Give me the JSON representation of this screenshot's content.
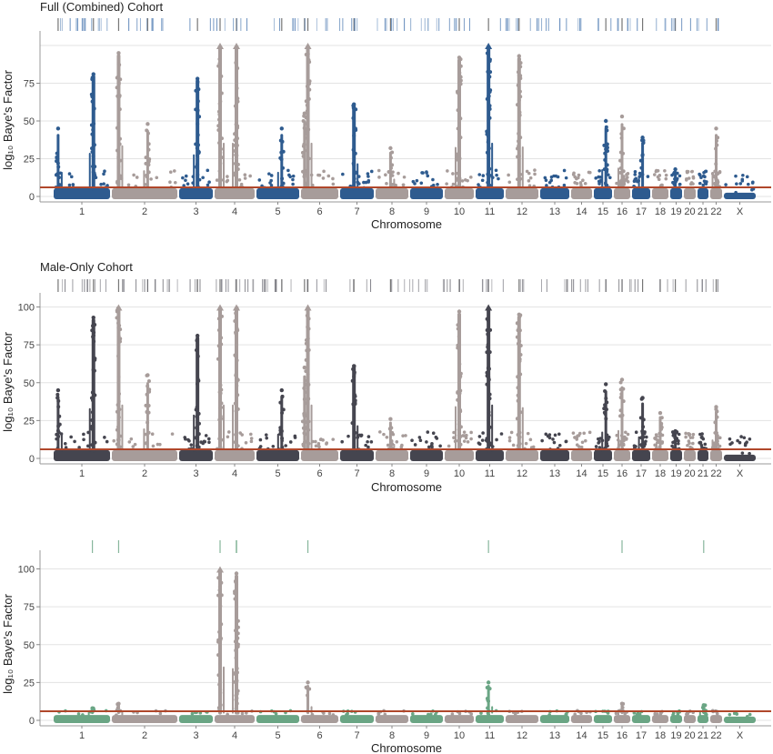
{
  "chart_data": [
    {
      "type": "scatter",
      "title": "Full (Combined) Cohort",
      "xlabel": "Chromosome",
      "ylabel": "log₁₀ Baye's Factor",
      "ylim": [
        0,
        100
      ],
      "yticks": [
        0,
        25,
        50,
        75
      ],
      "chromosomes": [
        "1",
        "2",
        "3",
        "4",
        "5",
        "6",
        "7",
        "8",
        "9",
        "10",
        "11",
        "12",
        "13",
        "14",
        "15",
        "16",
        "17",
        "18",
        "19",
        "20",
        "21",
        "22",
        "X"
      ],
      "threshold": 6,
      "colors": {
        "odd": "#2e5b8f",
        "even": "#a79c9a",
        "threshold": "#b0472b",
        "rug": "#4a78b0"
      },
      "peaks": [
        {
          "chr": "1",
          "value": 45,
          "pos": 0.05
        },
        {
          "chr": "1",
          "value": 81,
          "pos": 0.72
        },
        {
          "chr": "2",
          "value": 95,
          "pos": 0.08
        },
        {
          "chr": "2",
          "value": 48,
          "pos": 0.55
        },
        {
          "chr": "3",
          "value": 78,
          "pos": 0.55
        },
        {
          "chr": "4",
          "value": 100,
          "pos": 0.1,
          "capped": true
        },
        {
          "chr": "4",
          "value": 100,
          "pos": 0.55,
          "capped": true
        },
        {
          "chr": "5",
          "value": 45,
          "pos": 0.6
        },
        {
          "chr": "6",
          "value": 55,
          "pos": 0.05
        },
        {
          "chr": "6",
          "value": 100,
          "pos": 0.15,
          "capped": true
        },
        {
          "chr": "7",
          "value": 61,
          "pos": 0.4
        },
        {
          "chr": "8",
          "value": 32,
          "pos": 0.45
        },
        {
          "chr": "10",
          "value": 92,
          "pos": 0.5
        },
        {
          "chr": "11",
          "value": 100,
          "pos": 0.45,
          "capped": true
        },
        {
          "chr": "12",
          "value": 93,
          "pos": 0.4
        },
        {
          "chr": "15",
          "value": 50,
          "pos": 0.7
        },
        {
          "chr": "16",
          "value": 53,
          "pos": 0.5
        },
        {
          "chr": "17",
          "value": 39,
          "pos": 0.6
        },
        {
          "chr": "19",
          "value": 18,
          "pos": 0.4
        },
        {
          "chr": "22",
          "value": 45,
          "pos": 0.5
        }
      ]
    },
    {
      "type": "scatter",
      "title": "Male-Only Cohort",
      "xlabel": "Chromosome",
      "ylabel": "log₁₀ Baye's Factor",
      "ylim": [
        0,
        100
      ],
      "yticks": [
        0,
        25,
        50,
        75,
        100
      ],
      "chromosomes": [
        "1",
        "2",
        "3",
        "4",
        "5",
        "6",
        "7",
        "8",
        "9",
        "10",
        "11",
        "12",
        "13",
        "14",
        "15",
        "16",
        "17",
        "18",
        "19",
        "20",
        "21",
        "22",
        "X"
      ],
      "threshold": 6,
      "colors": {
        "odd": "#45454f",
        "even": "#a79c9a",
        "threshold": "#b0472b",
        "rug": "#6a6a72"
      },
      "peaks": [
        {
          "chr": "1",
          "value": 45,
          "pos": 0.05
        },
        {
          "chr": "1",
          "value": 93,
          "pos": 0.72
        },
        {
          "chr": "2",
          "value": 100,
          "pos": 0.08,
          "capped": true
        },
        {
          "chr": "2",
          "value": 55,
          "pos": 0.55
        },
        {
          "chr": "3",
          "value": 81,
          "pos": 0.55
        },
        {
          "chr": "4",
          "value": 100,
          "pos": 0.1,
          "capped": true
        },
        {
          "chr": "4",
          "value": 100,
          "pos": 0.55,
          "capped": true
        },
        {
          "chr": "5",
          "value": 45,
          "pos": 0.6
        },
        {
          "chr": "6",
          "value": 60,
          "pos": 0.05
        },
        {
          "chr": "6",
          "value": 100,
          "pos": 0.15,
          "capped": true
        },
        {
          "chr": "7",
          "value": 61,
          "pos": 0.4
        },
        {
          "chr": "8",
          "value": 26,
          "pos": 0.45
        },
        {
          "chr": "10",
          "value": 97,
          "pos": 0.5
        },
        {
          "chr": "11",
          "value": 100,
          "pos": 0.45,
          "capped": true
        },
        {
          "chr": "12",
          "value": 95,
          "pos": 0.4
        },
        {
          "chr": "15",
          "value": 49,
          "pos": 0.7
        },
        {
          "chr": "16",
          "value": 52,
          "pos": 0.5
        },
        {
          "chr": "17",
          "value": 40,
          "pos": 0.6
        },
        {
          "chr": "18",
          "value": 30,
          "pos": 0.5
        },
        {
          "chr": "19",
          "value": 18,
          "pos": 0.4
        },
        {
          "chr": "22",
          "value": 34,
          "pos": 0.5
        }
      ]
    },
    {
      "type": "scatter",
      "title": "",
      "xlabel": "Chromosome",
      "ylabel": "log₁₀ Baye's Factor",
      "ylim": [
        0,
        100
      ],
      "yticks": [
        0,
        25,
        50,
        75,
        100
      ],
      "chromosomes": [
        "1",
        "2",
        "3",
        "4",
        "5",
        "6",
        "7",
        "8",
        "9",
        "10",
        "11",
        "12",
        "13",
        "14",
        "15",
        "16",
        "17",
        "18",
        "19",
        "20",
        "21",
        "22",
        "X"
      ],
      "threshold": 6,
      "colors": {
        "odd": "#6aa584",
        "even": "#a79c9a",
        "threshold": "#b0472b",
        "rug": "#6aa584"
      },
      "peaks": [
        {
          "chr": "1",
          "value": 8,
          "pos": 0.7
        },
        {
          "chr": "2",
          "value": 11,
          "pos": 0.08
        },
        {
          "chr": "4",
          "value": 100,
          "pos": 0.1,
          "capped": true
        },
        {
          "chr": "4",
          "value": 97,
          "pos": 0.55
        },
        {
          "chr": "4",
          "value": 53,
          "pos": 0.55
        },
        {
          "chr": "6",
          "value": 25,
          "pos": 0.15
        },
        {
          "chr": "11",
          "value": 25,
          "pos": 0.45
        },
        {
          "chr": "16",
          "value": 11,
          "pos": 0.5
        },
        {
          "chr": "21",
          "value": 10,
          "pos": 0.6
        }
      ]
    }
  ]
}
